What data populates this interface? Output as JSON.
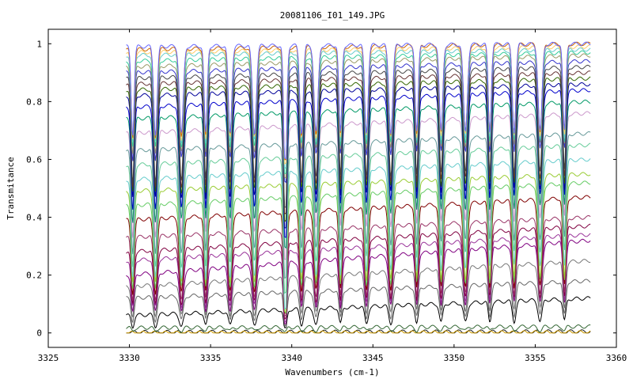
{
  "chart_data": {
    "type": "line",
    "title": "20081106_I01_149.JPG",
    "xlabel": "Wavenumbers (cm-1)",
    "ylabel": "Transmitance",
    "xlim": [
      3325,
      3360
    ],
    "ylim": [
      -0.05,
      1.05
    ],
    "x_ticks": [
      3325,
      3330,
      3335,
      3340,
      3345,
      3350,
      3355,
      3360
    ],
    "y_ticks": [
      0,
      0.2,
      0.4,
      0.6,
      0.8,
      1
    ],
    "x_tick_labels": [
      "3325",
      "3330",
      "3335",
      "3340",
      "3345",
      "3350",
      "3355",
      "3360"
    ],
    "y_tick_labels": [
      "0",
      "0.2",
      "0.4",
      "0.6",
      "0.8",
      "1"
    ],
    "grid": false,
    "legend": "none",
    "x_data_range": [
      3329.8,
      3358.4
    ],
    "absorption_line_centers": [
      3330.2,
      3331.6,
      3333.2,
      3334.7,
      3336.2,
      3337.7,
      3339.6,
      3340.6,
      3341.5,
      3343.0,
      3344.6,
      3346.1,
      3347.7,
      3349.2,
      3350.7,
      3352.2,
      3353.7,
      3355.3,
      3356.8
    ],
    "series": [
      {
        "color": "#1a1a1a",
        "baseline": 0.005,
        "wings": [
          0.003,
          0.005
        ]
      },
      {
        "color": "#cc9900",
        "baseline": 0.003,
        "wings": [
          0.0,
          0.002
        ]
      },
      {
        "color": "#336633",
        "baseline": 0.02,
        "wings": [
          0.018,
          0.022
        ]
      },
      {
        "color": "#000000",
        "baseline": 0.09,
        "wings": [
          0.06,
          0.12
        ]
      },
      {
        "color": "#666666",
        "baseline": 0.15,
        "wings": [
          0.12,
          0.18
        ]
      },
      {
        "color": "#777777",
        "baseline": 0.2,
        "wings": [
          0.16,
          0.25
        ]
      },
      {
        "color": "#800080",
        "baseline": 0.25,
        "wings": [
          0.2,
          0.32
        ]
      },
      {
        "color": "#993399",
        "baseline": 0.29,
        "wings": [
          0.25,
          0.34
        ]
      },
      {
        "color": "#800040",
        "baseline": 0.33,
        "wings": [
          0.28,
          0.37
        ]
      },
      {
        "color": "#993366",
        "baseline": 0.37,
        "wings": [
          0.33,
          0.4
        ]
      },
      {
        "color": "#800000",
        "baseline": 0.43,
        "wings": [
          0.39,
          0.47
        ]
      },
      {
        "color": "#66cc66",
        "baseline": 0.48,
        "wings": [
          0.44,
          0.52
        ]
      },
      {
        "color": "#99cc33",
        "baseline": 0.52,
        "wings": [
          0.49,
          0.55
        ]
      },
      {
        "color": "#66cccc",
        "baseline": 0.56,
        "wings": [
          0.53,
          0.6
        ]
      },
      {
        "color": "#66cc99",
        "baseline": 0.61,
        "wings": [
          0.58,
          0.65
        ]
      },
      {
        "color": "#669999",
        "baseline": 0.66,
        "wings": [
          0.63,
          0.69
        ]
      },
      {
        "color": "#cc99cc",
        "baseline": 0.72,
        "wings": [
          0.69,
          0.76
        ]
      },
      {
        "color": "#009966",
        "baseline": 0.77,
        "wings": [
          0.74,
          0.8
        ]
      },
      {
        "color": "#0000cc",
        "baseline": 0.81,
        "wings": [
          0.78,
          0.84
        ]
      },
      {
        "color": "#000099",
        "baseline": 0.84,
        "wings": [
          0.82,
          0.86
        ]
      },
      {
        "color": "#336600",
        "baseline": 0.86,
        "wings": [
          0.84,
          0.88
        ]
      },
      {
        "color": "#663333",
        "baseline": 0.88,
        "wings": [
          0.86,
          0.9
        ]
      },
      {
        "color": "#444444",
        "baseline": 0.9,
        "wings": [
          0.88,
          0.92
        ]
      },
      {
        "color": "#3333cc",
        "baseline": 0.92,
        "wings": [
          0.9,
          0.94
        ]
      },
      {
        "color": "#999966",
        "baseline": 0.94,
        "wings": [
          0.92,
          0.96
        ]
      },
      {
        "color": "#33cc99",
        "baseline": 0.96,
        "wings": [
          0.94,
          0.97
        ]
      },
      {
        "color": "#66cccc",
        "baseline": 0.97,
        "wings": [
          0.96,
          0.98
        ]
      },
      {
        "color": "#ffcc66",
        "baseline": 0.98,
        "wings": [
          0.97,
          0.99
        ]
      },
      {
        "color": "#cc6600",
        "baseline": 0.99,
        "wings": [
          0.98,
          1.0
        ]
      },
      {
        "color": "#6666ff",
        "baseline": 0.995,
        "wings": [
          0.99,
          1.0
        ]
      }
    ]
  }
}
